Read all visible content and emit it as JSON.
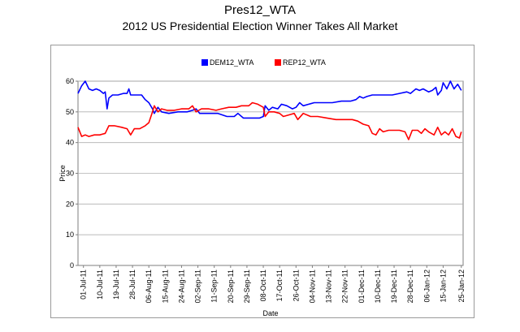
{
  "chart_data": {
    "type": "line",
    "title": "Pres12_WTA",
    "subtitle": "2012 US Presidential Election Winner Takes All Market",
    "xlabel": "Date",
    "ylabel": "Price",
    "ylim": [
      0,
      60
    ],
    "yticks": [
      0,
      10,
      20,
      30,
      40,
      50,
      60
    ],
    "xlim": [
      "2011-06-28",
      "2012-01-26"
    ],
    "xticks": [
      {
        "date": "2011-07-01",
        "label": "01-Jul-11"
      },
      {
        "date": "2011-07-10",
        "label": "10-Jul-11"
      },
      {
        "date": "2011-07-19",
        "label": "19-Jul-11"
      },
      {
        "date": "2011-07-28",
        "label": "28-Jul-11"
      },
      {
        "date": "2011-08-06",
        "label": "06-Aug-11"
      },
      {
        "date": "2011-08-15",
        "label": "15-Aug-11"
      },
      {
        "date": "2011-08-24",
        "label": "24-Aug-11"
      },
      {
        "date": "2011-09-02",
        "label": "02-Sep-11"
      },
      {
        "date": "2011-09-11",
        "label": "11-Sep-11"
      },
      {
        "date": "2011-09-20",
        "label": "20-Sep-11"
      },
      {
        "date": "2011-09-29",
        "label": "29-Sep-11"
      },
      {
        "date": "2011-10-08",
        "label": "08-Oct-11"
      },
      {
        "date": "2011-10-17",
        "label": "17-Oct-11"
      },
      {
        "date": "2011-10-26",
        "label": "26-Oct-11"
      },
      {
        "date": "2011-11-04",
        "label": "04-Nov-11"
      },
      {
        "date": "2011-11-13",
        "label": "13-Nov-11"
      },
      {
        "date": "2011-11-22",
        "label": "22-Nov-11"
      },
      {
        "date": "2011-12-01",
        "label": "01-Dec-11"
      },
      {
        "date": "2011-12-10",
        "label": "10-Dec-11"
      },
      {
        "date": "2011-12-19",
        "label": "19-Dec-11"
      },
      {
        "date": "2011-12-28",
        "label": "28-Dec-11"
      },
      {
        "date": "2012-01-06",
        "label": "06-Jan-12"
      },
      {
        "date": "2012-01-15",
        "label": "15-Jan-12"
      },
      {
        "date": "2012-01-25",
        "label": "25-Jan-12"
      }
    ],
    "grid": true,
    "legend_position": "top-center",
    "series": [
      {
        "name": "DEM12_WTA",
        "color": "#0000ff",
        "points": [
          [
            "2011-06-28",
            56.0
          ],
          [
            "2011-06-30",
            58.5
          ],
          [
            "2011-07-02",
            60.0
          ],
          [
            "2011-07-04",
            57.5
          ],
          [
            "2011-07-06",
            57.0
          ],
          [
            "2011-07-08",
            57.5
          ],
          [
            "2011-07-10",
            57.0
          ],
          [
            "2011-07-12",
            56.0
          ],
          [
            "2011-07-13",
            56.5
          ],
          [
            "2011-07-14",
            51.0
          ],
          [
            "2011-07-15",
            54.5
          ],
          [
            "2011-07-17",
            55.5
          ],
          [
            "2011-07-20",
            55.5
          ],
          [
            "2011-07-23",
            56.0
          ],
          [
            "2011-07-25",
            56.0
          ],
          [
            "2011-07-26",
            57.5
          ],
          [
            "2011-07-27",
            55.5
          ],
          [
            "2011-07-30",
            55.5
          ],
          [
            "2011-08-02",
            55.5
          ],
          [
            "2011-08-04",
            54.0
          ],
          [
            "2011-08-06",
            53.0
          ],
          [
            "2011-08-08",
            51.0
          ],
          [
            "2011-08-09",
            49.5
          ],
          [
            "2011-08-11",
            51.5
          ],
          [
            "2011-08-13",
            50.0
          ],
          [
            "2011-08-17",
            49.5
          ],
          [
            "2011-08-22",
            50.0
          ],
          [
            "2011-08-27",
            50.0
          ],
          [
            "2011-08-30",
            50.5
          ],
          [
            "2011-09-01",
            51.0
          ],
          [
            "2011-09-03",
            49.5
          ],
          [
            "2011-09-08",
            49.5
          ],
          [
            "2011-09-13",
            49.5
          ],
          [
            "2011-09-18",
            48.5
          ],
          [
            "2011-09-22",
            48.5
          ],
          [
            "2011-09-24",
            49.5
          ],
          [
            "2011-09-27",
            48.0
          ],
          [
            "2011-10-02",
            48.0
          ],
          [
            "2011-10-06",
            48.0
          ],
          [
            "2011-10-08",
            48.5
          ],
          [
            "2011-10-09",
            52.0
          ],
          [
            "2011-10-11",
            50.5
          ],
          [
            "2011-10-13",
            51.5
          ],
          [
            "2011-10-16",
            51.0
          ],
          [
            "2011-10-18",
            52.5
          ],
          [
            "2011-10-21",
            52.0
          ],
          [
            "2011-10-24",
            51.0
          ],
          [
            "2011-10-26",
            51.5
          ],
          [
            "2011-10-28",
            53.0
          ],
          [
            "2011-10-30",
            52.0
          ],
          [
            "2011-11-02",
            52.5
          ],
          [
            "2011-11-05",
            53.0
          ],
          [
            "2011-11-10",
            53.0
          ],
          [
            "2011-11-15",
            53.0
          ],
          [
            "2011-11-20",
            53.5
          ],
          [
            "2011-11-25",
            53.5
          ],
          [
            "2011-11-28",
            54.0
          ],
          [
            "2011-11-30",
            55.0
          ],
          [
            "2011-12-02",
            54.5
          ],
          [
            "2011-12-04",
            55.0
          ],
          [
            "2011-12-07",
            55.5
          ],
          [
            "2011-12-10",
            55.5
          ],
          [
            "2011-12-13",
            55.5
          ],
          [
            "2011-12-18",
            55.5
          ],
          [
            "2011-12-22",
            56.0
          ],
          [
            "2011-12-26",
            56.5
          ],
          [
            "2011-12-28",
            56.0
          ],
          [
            "2011-12-31",
            57.5
          ],
          [
            "2012-01-02",
            57.0
          ],
          [
            "2012-01-04",
            57.5
          ],
          [
            "2012-01-07",
            56.5
          ],
          [
            "2012-01-09",
            57.0
          ],
          [
            "2012-01-11",
            58.0
          ],
          [
            "2012-01-12",
            55.5
          ],
          [
            "2012-01-14",
            57.0
          ],
          [
            "2012-01-15",
            59.5
          ],
          [
            "2012-01-17",
            57.5
          ],
          [
            "2012-01-19",
            60.0
          ],
          [
            "2012-01-21",
            57.5
          ],
          [
            "2012-01-23",
            59.0
          ],
          [
            "2012-01-25",
            57.0
          ]
        ]
      },
      {
        "name": "REP12_WTA",
        "color": "#ff0000",
        "points": [
          [
            "2011-06-28",
            45.0
          ],
          [
            "2011-06-30",
            42.0
          ],
          [
            "2011-07-02",
            42.5
          ],
          [
            "2011-07-04",
            42.0
          ],
          [
            "2011-07-07",
            42.5
          ],
          [
            "2011-07-10",
            42.5
          ],
          [
            "2011-07-13",
            43.0
          ],
          [
            "2011-07-15",
            45.5
          ],
          [
            "2011-07-18",
            45.5
          ],
          [
            "2011-07-22",
            45.0
          ],
          [
            "2011-07-25",
            44.5
          ],
          [
            "2011-07-27",
            42.5
          ],
          [
            "2011-07-29",
            44.5
          ],
          [
            "2011-08-01",
            44.5
          ],
          [
            "2011-08-04",
            45.5
          ],
          [
            "2011-08-06",
            46.5
          ],
          [
            "2011-08-08",
            50.0
          ],
          [
            "2011-08-09",
            52.0
          ],
          [
            "2011-08-11",
            50.0
          ],
          [
            "2011-08-13",
            51.0
          ],
          [
            "2011-08-16",
            50.5
          ],
          [
            "2011-08-20",
            50.5
          ],
          [
            "2011-08-24",
            51.0
          ],
          [
            "2011-08-28",
            51.0
          ],
          [
            "2011-08-30",
            52.0
          ],
          [
            "2011-09-01",
            50.0
          ],
          [
            "2011-09-04",
            51.0
          ],
          [
            "2011-09-08",
            51.0
          ],
          [
            "2011-09-12",
            50.5
          ],
          [
            "2011-09-15",
            51.0
          ],
          [
            "2011-09-19",
            51.5
          ],
          [
            "2011-09-23",
            51.5
          ],
          [
            "2011-09-26",
            52.0
          ],
          [
            "2011-09-30",
            52.0
          ],
          [
            "2011-10-02",
            53.0
          ],
          [
            "2011-10-05",
            52.5
          ],
          [
            "2011-10-08",
            51.5
          ],
          [
            "2011-10-09",
            48.5
          ],
          [
            "2011-10-11",
            50.0
          ],
          [
            "2011-10-14",
            50.0
          ],
          [
            "2011-10-17",
            49.5
          ],
          [
            "2011-10-19",
            48.5
          ],
          [
            "2011-10-22",
            49.0
          ],
          [
            "2011-10-25",
            49.5
          ],
          [
            "2011-10-27",
            47.5
          ],
          [
            "2011-10-30",
            49.5
          ],
          [
            "2011-11-03",
            48.5
          ],
          [
            "2011-11-07",
            48.5
          ],
          [
            "2011-11-12",
            48.0
          ],
          [
            "2011-11-17",
            47.5
          ],
          [
            "2011-11-22",
            47.5
          ],
          [
            "2011-11-26",
            47.5
          ],
          [
            "2011-11-29",
            47.0
          ],
          [
            "2011-12-02",
            46.0
          ],
          [
            "2011-12-05",
            45.5
          ],
          [
            "2011-12-07",
            43.0
          ],
          [
            "2011-12-09",
            42.5
          ],
          [
            "2011-12-11",
            44.5
          ],
          [
            "2011-12-13",
            43.5
          ],
          [
            "2011-12-16",
            44.0
          ],
          [
            "2011-12-19",
            44.0
          ],
          [
            "2011-12-22",
            44.0
          ],
          [
            "2011-12-25",
            43.5
          ],
          [
            "2011-12-27",
            41.0
          ],
          [
            "2011-12-29",
            44.0
          ],
          [
            "2012-01-01",
            44.0
          ],
          [
            "2012-01-03",
            43.0
          ],
          [
            "2012-01-05",
            44.5
          ],
          [
            "2012-01-07",
            43.5
          ],
          [
            "2012-01-10",
            42.5
          ],
          [
            "2012-01-12",
            45.0
          ],
          [
            "2012-01-14",
            42.5
          ],
          [
            "2012-01-16",
            43.5
          ],
          [
            "2012-01-18",
            42.5
          ],
          [
            "2012-01-20",
            44.5
          ],
          [
            "2012-01-22",
            42.0
          ],
          [
            "2012-01-24",
            41.5
          ],
          [
            "2012-01-25",
            43.5
          ]
        ]
      }
    ]
  }
}
